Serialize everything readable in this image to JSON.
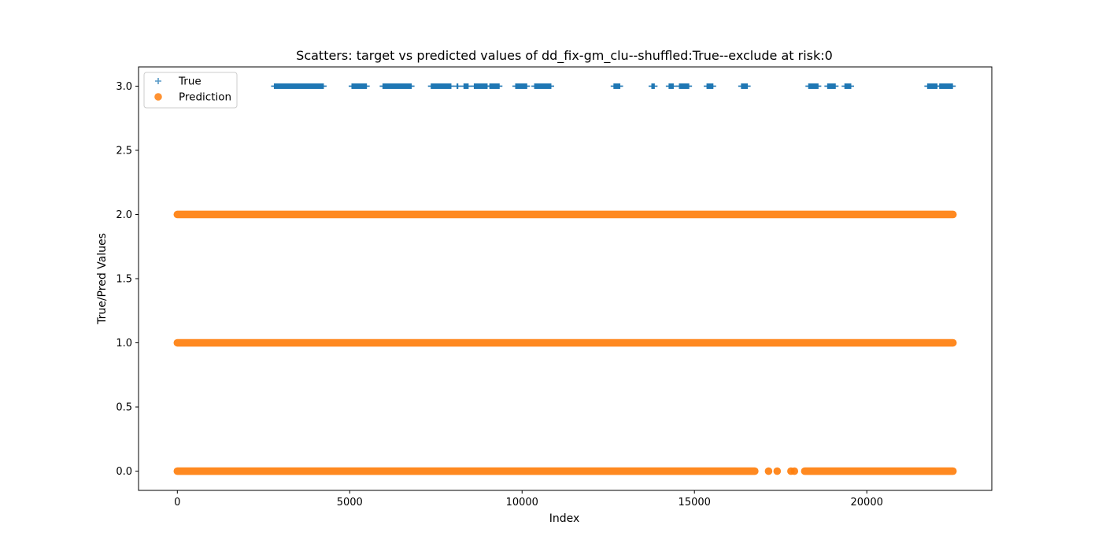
{
  "chart_data": {
    "type": "scatter",
    "title": "Scatters: target vs predicted values of dd_fix-gm_clu--shuffled:True--exclude at risk:0",
    "xlabel": "Index",
    "ylabel": "True/Pred Values",
    "xlim": [
      -1126,
      23626
    ],
    "ylim": [
      -0.15,
      3.15
    ],
    "xticks": [
      0,
      5000,
      10000,
      15000,
      20000
    ],
    "xtick_labels": [
      "0",
      "5000",
      "10000",
      "15000",
      "20000"
    ],
    "yticks": [
      0.0,
      0.5,
      1.0,
      1.5,
      2.0,
      2.5,
      3.0
    ],
    "ytick_labels": [
      "0.0",
      "0.5",
      "1.0",
      "1.5",
      "2.0",
      "2.5",
      "3.0"
    ],
    "grid": false,
    "legend_position": "top-left",
    "series": [
      {
        "name": "True",
        "marker": "plus",
        "color": "#1f77b4",
        "y": 3.0,
        "x_ranges": [
          [
            2800,
            4250
          ],
          [
            5050,
            5500
          ],
          [
            5950,
            6800
          ],
          [
            7350,
            7950
          ],
          [
            8100,
            8150
          ],
          [
            8300,
            8450
          ],
          [
            8600,
            9000
          ],
          [
            9050,
            9350
          ],
          [
            9800,
            10150
          ],
          [
            10350,
            10850
          ],
          [
            12650,
            12850
          ],
          [
            13750,
            13850
          ],
          [
            14250,
            14400
          ],
          [
            14550,
            14850
          ],
          [
            15350,
            15550
          ],
          [
            16350,
            16550
          ],
          [
            18300,
            18600
          ],
          [
            18850,
            19100
          ],
          [
            19350,
            19550
          ],
          [
            21750,
            22050
          ],
          [
            22100,
            22500
          ]
        ],
        "points": []
      },
      {
        "name": "Prediction",
        "marker": "circle",
        "color": "#ff7f0e",
        "levels": [
          {
            "y": 2.0,
            "x_ranges": [
              [
                0,
                22500
              ]
            ],
            "points": []
          },
          {
            "y": 1.0,
            "x_ranges": [
              [
                0,
                22500
              ]
            ],
            "points": []
          },
          {
            "y": 0.0,
            "x_ranges": [
              [
                0,
                16750
              ],
              [
                18200,
                22500
              ]
            ],
            "points": [
              17150,
              17400,
              17800,
              17900
            ]
          }
        ]
      }
    ]
  }
}
